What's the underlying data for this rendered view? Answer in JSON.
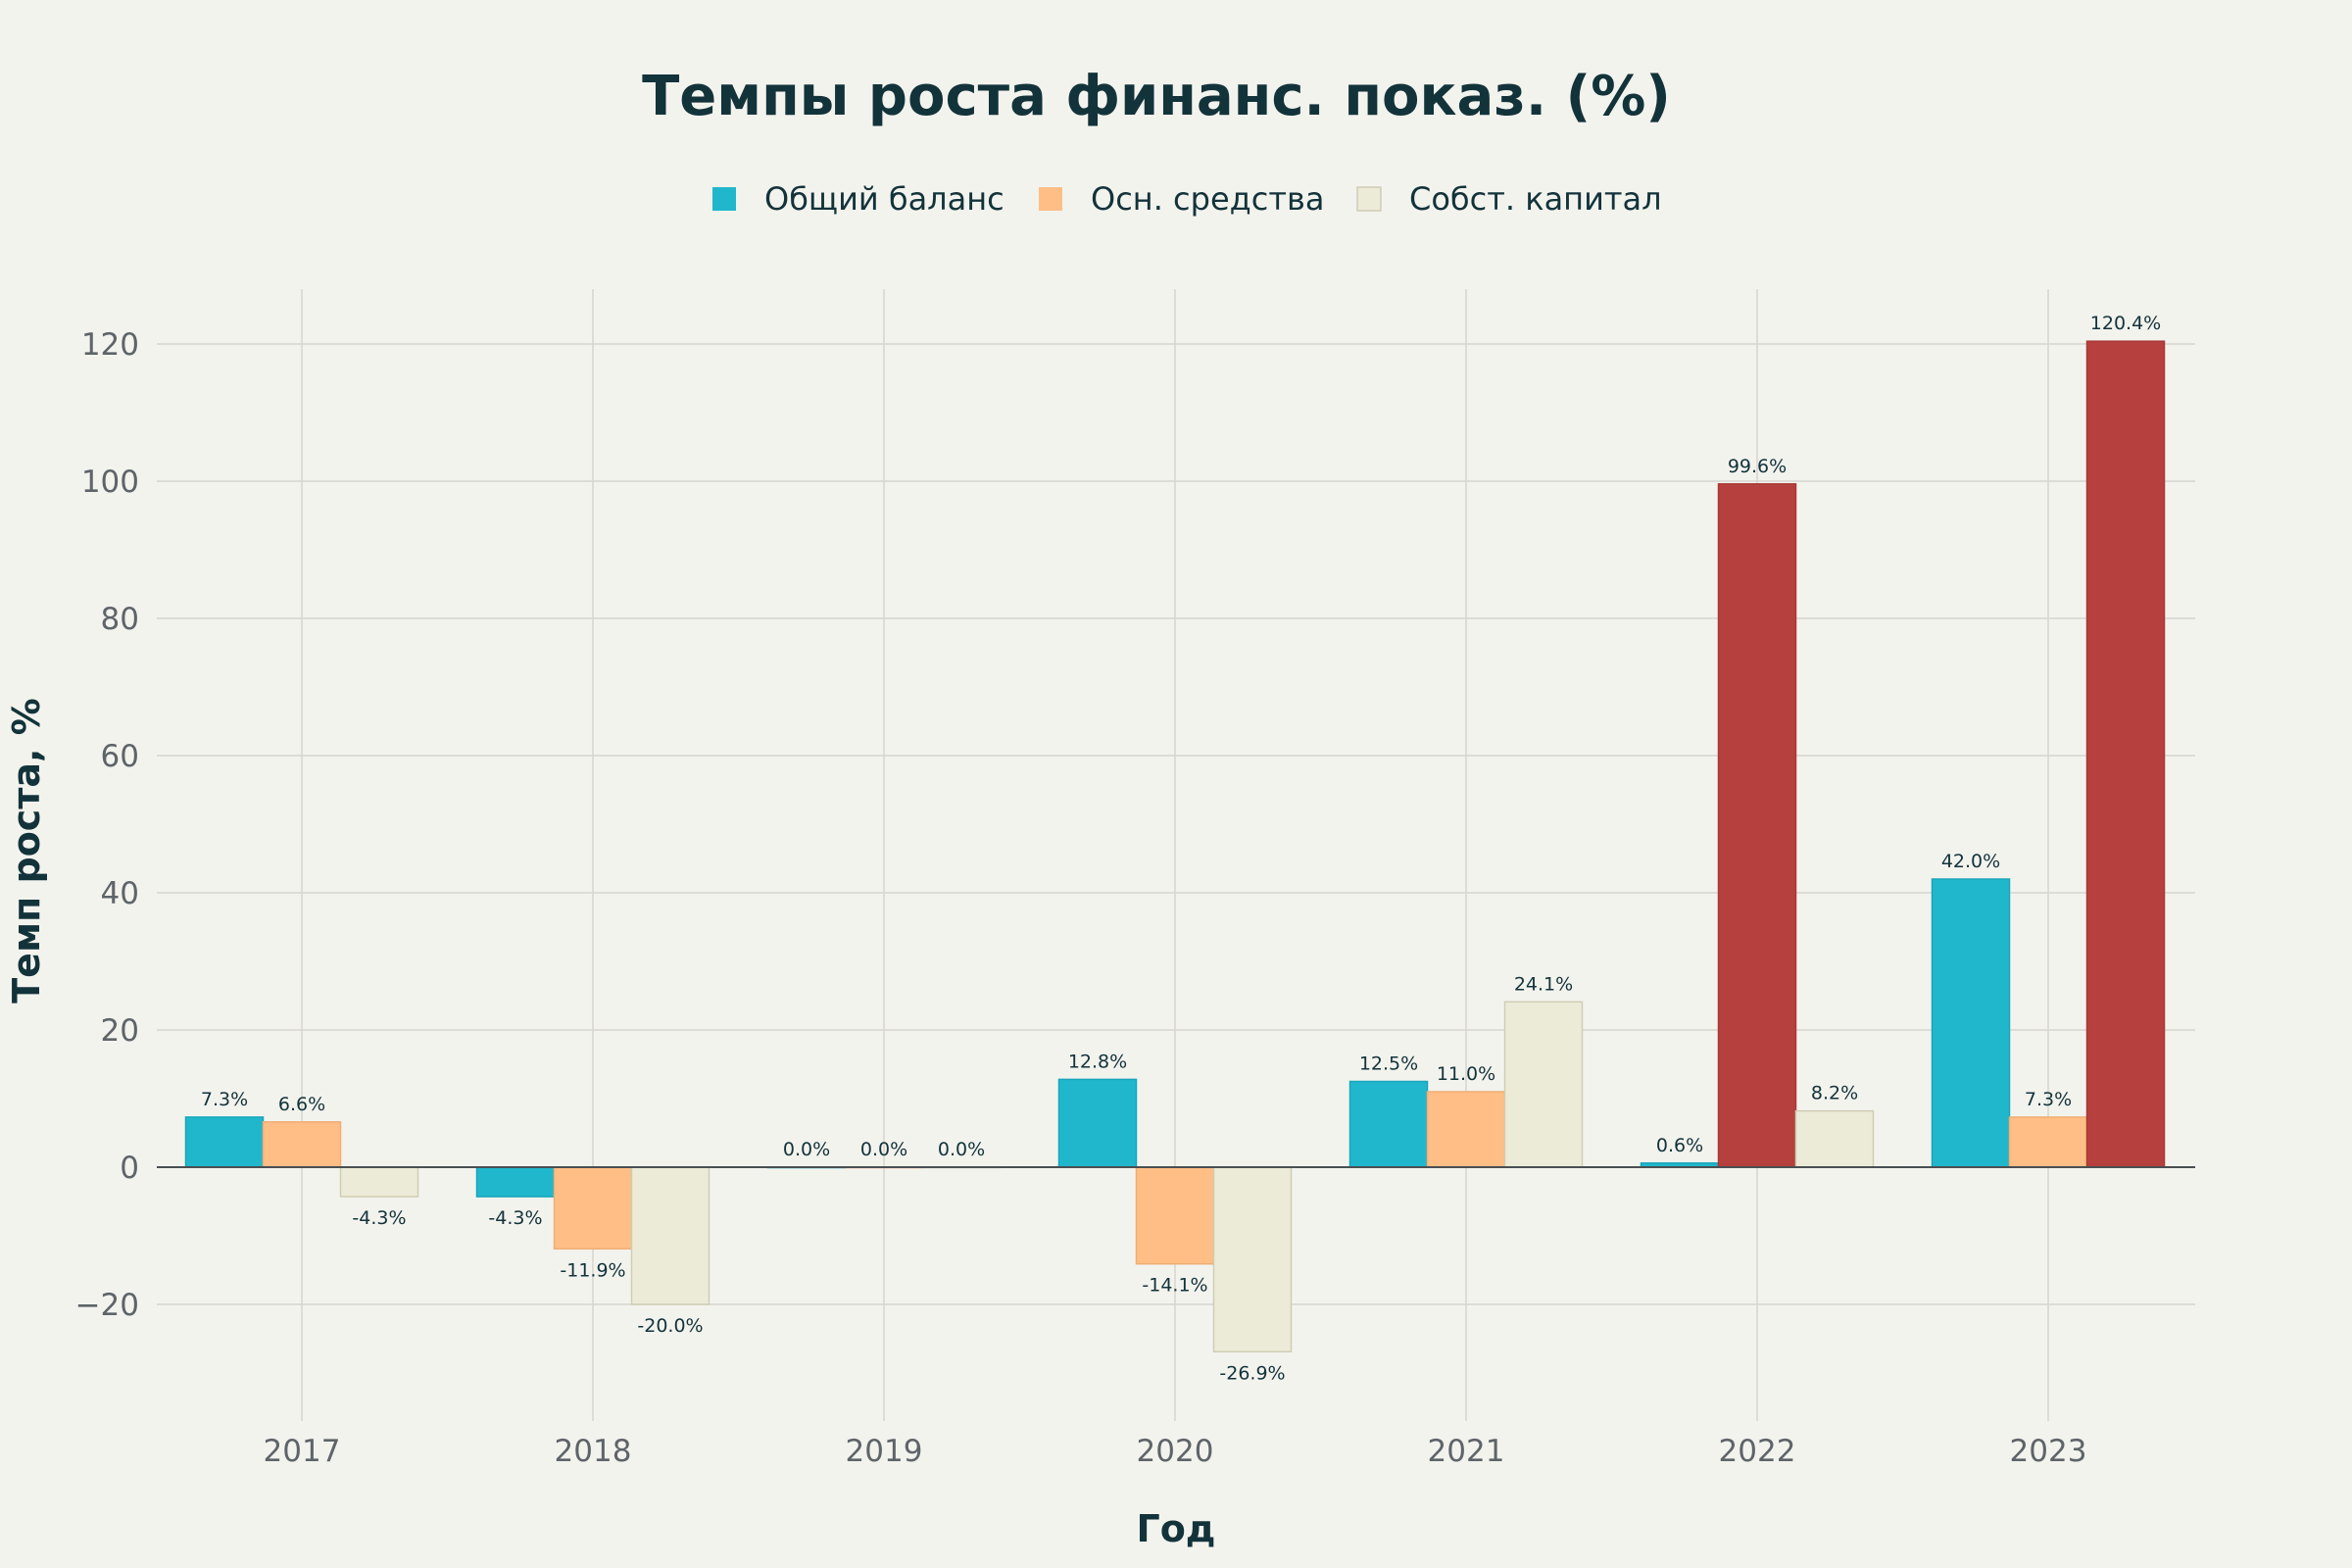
{
  "chart_data": {
    "type": "bar",
    "title": "Темпы роста финанс. показ. (%)",
    "xlabel": "Год",
    "ylabel": "Темп роста, %",
    "categories": [
      "2017",
      "2018",
      "2019",
      "2020",
      "2021",
      "2022",
      "2023"
    ],
    "series": [
      {
        "name": "Общий баланс",
        "color": "#20b7cc",
        "values": [
          7.3,
          -4.3,
          0.0,
          12.8,
          12.5,
          0.6,
          42.0
        ],
        "labels": [
          "7.3%",
          "-4.3%",
          "0.0%",
          "12.8%",
          "12.5%",
          "0.6%",
          "42.0%"
        ]
      },
      {
        "name": "Осн. средства",
        "color": "#ffbe85",
        "values": [
          6.6,
          -11.9,
          0.0,
          -14.1,
          11.0,
          99.6,
          7.3
        ],
        "labels": [
          "6.6%",
          "-11.9%",
          "0.0%",
          "-14.1%",
          "11.0%",
          "99.6%",
          "7.3%"
        ]
      },
      {
        "name": "Собст. капитал",
        "color": "#ecebd8",
        "values": [
          -4.3,
          -20.0,
          0.0,
          -26.9,
          24.1,
          8.2,
          120.4
        ],
        "labels": [
          "-4.3%",
          "-20.0%",
          "0.0%",
          "-26.9%",
          "24.1%",
          "8.2%",
          "120.4%"
        ]
      }
    ],
    "highlight_color": "#b5403d",
    "ylim": [
      -37,
      128
    ],
    "yticks": [
      -20,
      0,
      20,
      40,
      60,
      80,
      100,
      120
    ],
    "ytick_labels": [
      "−20",
      "0",
      "20",
      "40",
      "60",
      "80",
      "100",
      "120"
    ],
    "grid": true,
    "legend_position": "top-center"
  }
}
